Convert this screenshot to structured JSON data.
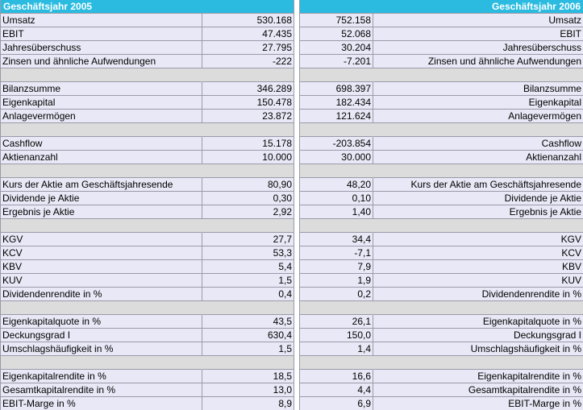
{
  "header": {
    "left_title": "Geschäftsjahr 2005",
    "right_title": "Geschäftsjahr 2006"
  },
  "rows": [
    {
      "label": "Umsatz",
      "v2005": "530.168",
      "v2006": "752.158"
    },
    {
      "label": "EBIT",
      "v2005": "47.435",
      "v2006": "52.068"
    },
    {
      "label": "Jahresüberschuss",
      "v2005": "27.795",
      "v2006": "30.204"
    },
    {
      "label": "Zinsen und ähnliche Aufwendungen",
      "v2005": "-222",
      "v2006": "-7.201"
    },
    {
      "gap": true
    },
    {
      "label": "Bilanzsumme",
      "v2005": "346.289",
      "v2006": "698.397"
    },
    {
      "label": "Eigenkapital",
      "v2005": "150.478",
      "v2006": "182.434"
    },
    {
      "label": "Anlagevermögen",
      "v2005": "23.872",
      "v2006": "121.624"
    },
    {
      "gap": true
    },
    {
      "label": "Cashflow",
      "v2005": "15.178",
      "v2006": "-203.854"
    },
    {
      "label": "Aktienanzahl",
      "v2005": "10.000",
      "v2006": "30.000"
    },
    {
      "gap": true
    },
    {
      "label": "Kurs der Aktie am Geschäftsjahresende",
      "v2005": "80,90",
      "v2006": "48,20"
    },
    {
      "label": "Dividende je Aktie",
      "v2005": "0,30",
      "v2006": "0,10"
    },
    {
      "label": "Ergebnis je Aktie",
      "v2005": "2,92",
      "v2006": "1,40"
    },
    {
      "gap": true
    },
    {
      "label": "KGV",
      "v2005": "27,7",
      "v2006": "34,4"
    },
    {
      "label": "KCV",
      "v2005": "53,3",
      "v2006": "-7,1"
    },
    {
      "label": "KBV",
      "v2005": "5,4",
      "v2006": "7,9"
    },
    {
      "label": "KUV",
      "v2005": "1,5",
      "v2006": "1,9"
    },
    {
      "label": "Dividendenrendite in %",
      "v2005": "0,4",
      "v2006": "0,2"
    },
    {
      "gap": true
    },
    {
      "label": "Eigenkapitalquote in %",
      "v2005": "43,5",
      "v2006": "26,1"
    },
    {
      "label": "Deckungsgrad I",
      "v2005": "630,4",
      "v2006": "150,0"
    },
    {
      "label": "Umschlagshäufigkeit in %",
      "v2005": "1,5",
      "v2006": "1,4"
    },
    {
      "gap": true
    },
    {
      "label": "Eigenkapitalrendite in %",
      "v2005": "18,5",
      "v2006": "16,6"
    },
    {
      "label": "Gesamtkapitalrendite in %",
      "v2005": "13,0",
      "v2006": "4,4"
    },
    {
      "label": "EBIT-Marge in %",
      "v2005": "8,9",
      "v2006": "6,9"
    }
  ]
}
